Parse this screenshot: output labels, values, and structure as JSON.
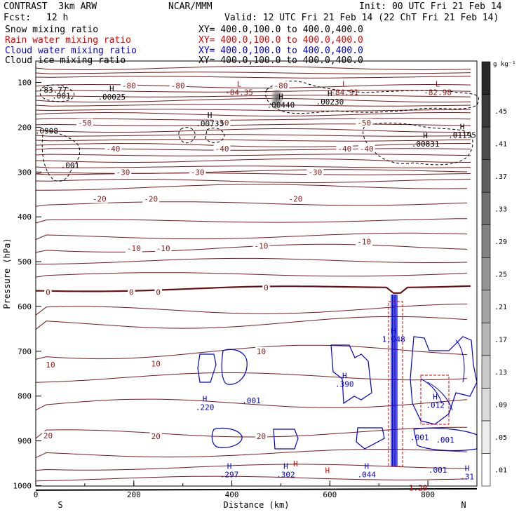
{
  "header": {
    "model": "CONTRAST  3km ARW",
    "org": "NCAR/MMM",
    "init": "Init: 00 UTC Fri 21 Feb 14",
    "fcst_label": "Fcst:",
    "fcst_value": "12 h",
    "valid": "Valid: 12 UTC Fri 21 Feb 14 (22 ChT Fri 21 Feb 14)"
  },
  "fields": [
    {
      "name": "Snow mixing ratio",
      "xy": "XY= 400.0,100.0 to 400.0,400.0",
      "color": "#000000"
    },
    {
      "name": "Rain water mixing ratio",
      "xy": "XY= 400.0,100.0 to 400.0,400.0",
      "color": "#e00000"
    },
    {
      "name": "Cloud water mixing ratio",
      "xy": "XY= 400.0,100.0 to 400.0,400.0",
      "color": "#0000d0"
    },
    {
      "name": "Cloud ice mixing ratio",
      "xy": "XY= 400.0,100.0 to 400.0,400.0",
      "color": "#000000"
    }
  ],
  "chart_data": {
    "type": "cross-section",
    "xlabel": "Distance (km)",
    "ylabel": "Pressure (hPa)",
    "xlim": [
      0,
      900
    ],
    "ylim": [
      1050,
      50
    ],
    "x_ticks": [
      "0",
      "200",
      "400",
      "600",
      "800"
    ],
    "y_ticks": [
      "100",
      "200",
      "300",
      "400",
      "500",
      "600",
      "700",
      "800",
      "900",
      "1000"
    ],
    "end_labels": {
      "left": "S",
      "right": "N"
    },
    "colorbar": {
      "unit": "g kg⁻¹",
      "levels": [
        ".01",
        ".05",
        ".09",
        ".13",
        ".17",
        ".21",
        ".25",
        ".29",
        ".33",
        ".37",
        ".41",
        ".45"
      ]
    },
    "temperature_contours": [
      {
        "value": -80,
        "labels": [
          {
            "x": 190,
            "p": 107,
            "t": "-80"
          },
          {
            "x": 290,
            "p": 107,
            "t": "-80"
          },
          {
            "x": 500,
            "p": 107,
            "t": "-80"
          }
        ]
      },
      {
        "value": -50,
        "labels": [
          {
            "x": 100,
            "p": 190,
            "t": "-50"
          },
          {
            "x": 380,
            "p": 190,
            "t": "-50"
          },
          {
            "x": 670,
            "p": 190,
            "t": "-50"
          }
        ]
      },
      {
        "value": -40,
        "labels": [
          {
            "x": 158,
            "p": 248,
            "t": "-40"
          },
          {
            "x": 380,
            "p": 248,
            "t": "-40"
          },
          {
            "x": 630,
            "p": 248,
            "t": "-40"
          },
          {
            "x": 675,
            "p": 248,
            "t": "-40"
          }
        ]
      },
      {
        "value": -30,
        "labels": [
          {
            "x": 178,
            "p": 300,
            "t": "-30"
          },
          {
            "x": 330,
            "p": 300,
            "t": "-30"
          },
          {
            "x": 570,
            "p": 300,
            "t": "-30"
          }
        ]
      },
      {
        "value": -20,
        "labels": [
          {
            "x": 130,
            "p": 360,
            "t": "-20"
          },
          {
            "x": 235,
            "p": 360,
            "t": "-20"
          },
          {
            "x": 530,
            "p": 360,
            "t": "-20"
          }
        ]
      },
      {
        "value": -10,
        "labels": [
          {
            "x": 200,
            "p": 470,
            "t": "-10"
          },
          {
            "x": 260,
            "p": 470,
            "t": "-10"
          },
          {
            "x": 460,
            "p": 465,
            "t": "-10"
          },
          {
            "x": 670,
            "p": 455,
            "t": "-10"
          }
        ]
      },
      {
        "value": 0,
        "labels": [
          {
            "x": 25,
            "p": 568,
            "t": "0"
          },
          {
            "x": 195,
            "p": 568,
            "t": "0"
          },
          {
            "x": 250,
            "p": 568,
            "t": "0"
          },
          {
            "x": 470,
            "p": 558,
            "t": "0"
          }
        ]
      },
      {
        "value": 10,
        "labels": [
          {
            "x": 30,
            "p": 730,
            "t": "10"
          },
          {
            "x": 245,
            "p": 728,
            "t": "10"
          },
          {
            "x": 460,
            "p": 700,
            "t": "10"
          }
        ]
      },
      {
        "value": 20,
        "labels": [
          {
            "x": 25,
            "p": 888,
            "t": "20"
          },
          {
            "x": 245,
            "p": 890,
            "t": "20"
          },
          {
            "x": 460,
            "p": 890,
            "t": "20"
          }
        ]
      }
    ],
    "extrema": [
      {
        "x": 40,
        "p": 112,
        "type": "",
        "value": "83.77",
        "color": "black"
      },
      {
        "x": 52,
        "p": 125,
        "type": "",
        "value": ".001",
        "color": "black"
      },
      {
        "x": 155,
        "p": 127,
        "type": "H",
        "value": ".00025",
        "color": "black"
      },
      {
        "x": 415,
        "p": 117,
        "type": "L",
        "value": "-84.35",
        "color": "darkred"
      },
      {
        "x": 500,
        "p": 145,
        "type": "H",
        "value": ".00440",
        "color": "black"
      },
      {
        "x": 600,
        "p": 138,
        "type": "H",
        "value": ".00230",
        "color": "black"
      },
      {
        "x": 630,
        "p": 117,
        "type": "L",
        "value": "-84.91",
        "color": "darkred"
      },
      {
        "x": 820,
        "p": 117,
        "type": "L",
        "value": "-82.98",
        "color": "darkred"
      },
      {
        "x": 355,
        "p": 187,
        "type": "H",
        "value": ".00733",
        "color": "black"
      },
      {
        "x": 22,
        "p": 203,
        "type": "",
        "value": ".0908",
        "color": "black"
      },
      {
        "x": 70,
        "p": 280,
        "type": "",
        "value": ".001",
        "color": "black"
      },
      {
        "x": 795,
        "p": 232,
        "type": "H",
        "value": ".00831",
        "color": "black"
      },
      {
        "x": 870,
        "p": 213,
        "type": "H",
        "value": ".01195",
        "color": "black"
      },
      {
        "x": 730,
        "p": 668,
        "type": "H",
        "value": "1.048",
        "color": "blue"
      },
      {
        "x": 630,
        "p": 768,
        "type": "H",
        "value": ".390",
        "color": "blue"
      },
      {
        "x": 345,
        "p": 820,
        "type": "H",
        "value": ".220",
        "color": "blue"
      },
      {
        "x": 440,
        "p": 805,
        "type": "",
        "value": ".001",
        "color": "blue"
      },
      {
        "x": 815,
        "p": 815,
        "type": "H",
        "value": ".012",
        "color": "blue"
      },
      {
        "x": 783,
        "p": 887,
        "type": "",
        "value": ".001",
        "color": "blue"
      },
      {
        "x": 835,
        "p": 893,
        "type": "",
        "value": ".001",
        "color": "blue"
      },
      {
        "x": 820,
        "p": 960,
        "type": "",
        "value": ".001",
        "color": "blue"
      },
      {
        "x": 780,
        "p": 1000,
        "type": "",
        "value": "1.20",
        "color": "red"
      },
      {
        "x": 395,
        "p": 970,
        "type": "H",
        "value": ".297",
        "color": "blue"
      },
      {
        "x": 510,
        "p": 970,
        "type": "H",
        "value": ".302",
        "color": "blue"
      },
      {
        "x": 675,
        "p": 970,
        "type": "H",
        "value": ".044",
        "color": "blue"
      },
      {
        "x": 880,
        "p": 975,
        "type": "H",
        "value": ".31",
        "color": "blue"
      },
      {
        "x": 595,
        "p": 980,
        "type": "H",
        "value": "",
        "color": "red"
      },
      {
        "x": 530,
        "p": 965,
        "type": "H",
        "value": "",
        "color": "red"
      }
    ]
  }
}
